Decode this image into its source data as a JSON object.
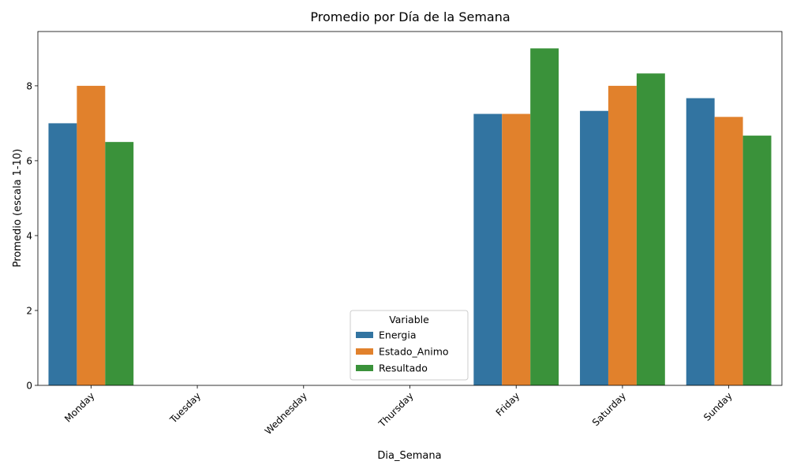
{
  "chart_data": {
    "type": "bar",
    "title": "Promedio por Día de la Semana",
    "xlabel": "Dia_Semana",
    "ylabel": "Promedio (escala 1-10)",
    "categories": [
      "Monday",
      "Tuesday",
      "Wednesday",
      "Thursday",
      "Friday",
      "Saturday",
      "Sunday"
    ],
    "series": [
      {
        "name": "Energia",
        "color": "#3274a1",
        "values": [
          7.0,
          null,
          null,
          null,
          7.25,
          7.33,
          7.67
        ]
      },
      {
        "name": "Estado_Animo",
        "color": "#e1812c",
        "values": [
          8.0,
          null,
          null,
          null,
          7.25,
          8.0,
          7.17
        ]
      },
      {
        "name": "Resultado",
        "color": "#3a923a",
        "values": [
          6.5,
          null,
          null,
          null,
          9.0,
          8.33,
          6.67
        ]
      }
    ],
    "ylim": [
      0,
      9.45
    ],
    "yticks": [
      0,
      2,
      4,
      6,
      8
    ],
    "grid": false,
    "legend": {
      "title": "Variable",
      "placement": "lower-center"
    }
  }
}
